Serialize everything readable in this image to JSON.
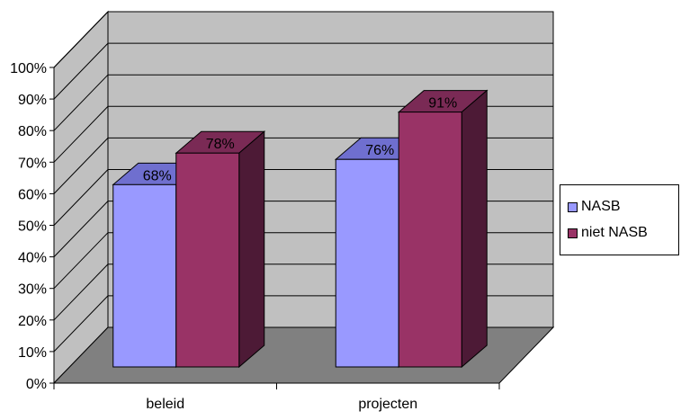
{
  "chart_data": {
    "type": "bar",
    "categories": [
      "beleid",
      "projecten"
    ],
    "series": [
      {
        "name": "NASB",
        "values": [
          68,
          76
        ],
        "labels": [
          "68%",
          "76%"
        ],
        "color": "#9999ff",
        "top_color": "#6f6fcf",
        "side_color": "#5b5bb0"
      },
      {
        "name": "niet NASB",
        "values": [
          78,
          91
        ],
        "labels": [
          "78%",
          "91%"
        ],
        "color": "#993366",
        "top_color": "#7a2a55",
        "side_color": "#4d1a36"
      }
    ],
    "y_ticks": [
      "0%",
      "10%",
      "20%",
      "30%",
      "40%",
      "50%",
      "60%",
      "70%",
      "80%",
      "90%",
      "100%"
    ],
    "ylim": [
      0,
      100
    ],
    "grid": true,
    "legend_position": "right",
    "wall_color": "#c0c0c0",
    "floor_color": "#808080",
    "title": "",
    "xlabel": "",
    "ylabel": ""
  }
}
